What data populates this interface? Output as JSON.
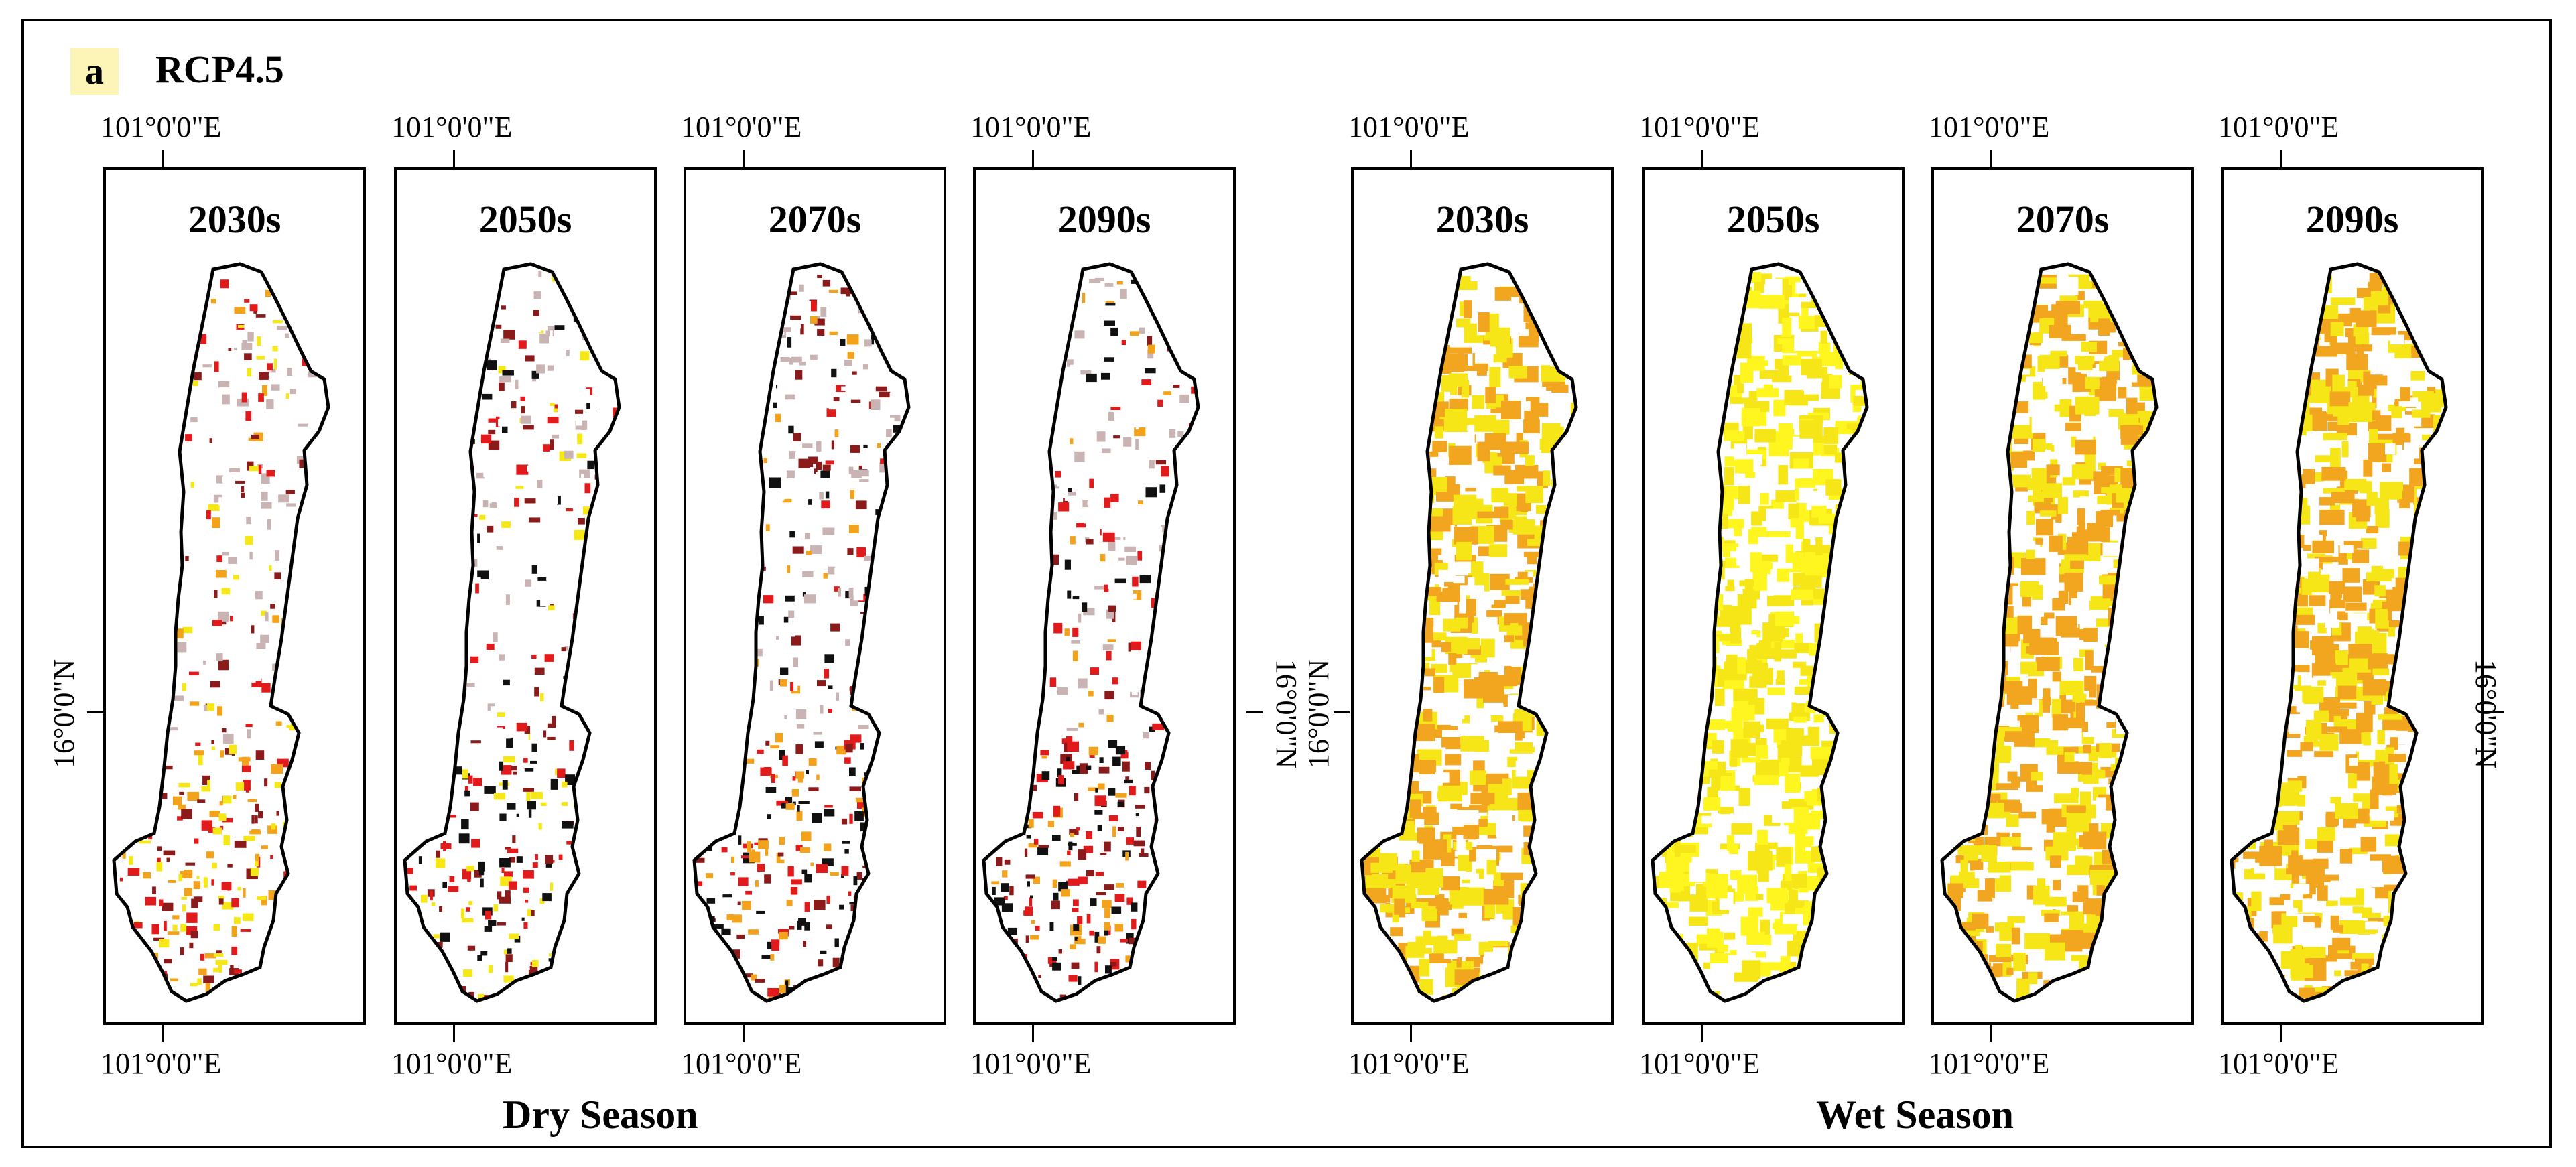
{
  "panel": {
    "label": "a",
    "scenario": "RCP4.5"
  },
  "lon_label": "101°0'0\"E",
  "lat_label": "16°0'0\"N",
  "seasons": {
    "dry": "Dry Season",
    "wet": "Wet Season"
  },
  "maps": [
    {
      "season": "dry",
      "period": "2030s",
      "palette": [
        "#8b1a1a",
        "#e11b1b",
        "#f3a21c",
        "#f6e817"
      ]
    },
    {
      "season": "dry",
      "period": "2050s",
      "palette": [
        "#8b1a1a",
        "#111111",
        "#e11b1b",
        "#f6e817"
      ]
    },
    {
      "season": "dry",
      "period": "2070s",
      "palette": [
        "#8b1a1a",
        "#111111",
        "#e11b1b",
        "#f3a21c"
      ]
    },
    {
      "season": "dry",
      "period": "2090s",
      "palette": [
        "#8b1a1a",
        "#111111",
        "#e11b1b",
        "#f3a21c"
      ]
    },
    {
      "season": "wet",
      "period": "2030s",
      "palette": [
        "#f2a51e",
        "#f6e617"
      ]
    },
    {
      "season": "wet",
      "period": "2050s",
      "palette": [
        "#fff61f",
        "#f6e617"
      ]
    },
    {
      "season": "wet",
      "period": "2070s",
      "palette": [
        "#f2a51e",
        "#f6e617"
      ]
    },
    {
      "season": "wet",
      "period": "2090s",
      "palette": [
        "#f2a51e",
        "#f6e617"
      ]
    }
  ]
}
